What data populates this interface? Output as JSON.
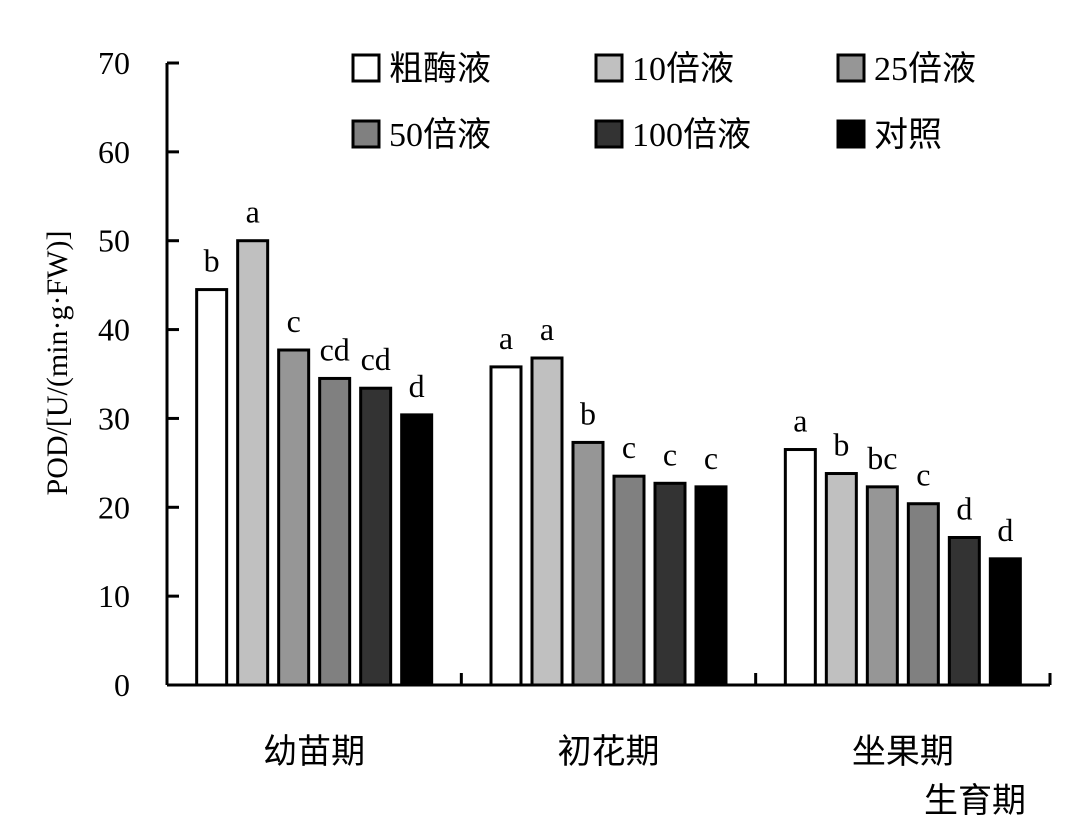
{
  "chart_data": {
    "type": "bar",
    "title": "",
    "ylabel": "POD/[U/(min·g·FW)]",
    "xlabel": "生育期",
    "ylim": [
      0,
      70
    ],
    "yticks": [
      0,
      10,
      20,
      30,
      40,
      50,
      60,
      70
    ],
    "categories": [
      "幼苗期",
      "初花期",
      "坐果期"
    ],
    "legend_position": "top",
    "series": [
      {
        "name": "粗酶液",
        "color": "#ffffff",
        "values": [
          44.5,
          35.8,
          26.5
        ],
        "letters": [
          "b",
          "a",
          "a"
        ]
      },
      {
        "name": "10倍液",
        "color": "#c0c0c0",
        "values": [
          50.0,
          36.8,
          23.8
        ],
        "letters": [
          "a",
          "a",
          "b"
        ]
      },
      {
        "name": "25倍液",
        "color": "#969696",
        "values": [
          37.7,
          27.3,
          22.3
        ],
        "letters": [
          "c",
          "b",
          "bc"
        ]
      },
      {
        "name": "50倍液",
        "color": "#808080",
        "values": [
          34.5,
          23.5,
          20.4
        ],
        "letters": [
          "cd",
          "c",
          "c"
        ]
      },
      {
        "name": "100倍液",
        "color": "#333333",
        "values": [
          33.4,
          22.7,
          16.6
        ],
        "letters": [
          "cd",
          "c",
          "d"
        ]
      },
      {
        "name": "对照",
        "color": "#000000",
        "values": [
          30.4,
          22.3,
          14.2
        ],
        "letters": [
          "d",
          "c",
          "d"
        ]
      }
    ]
  }
}
